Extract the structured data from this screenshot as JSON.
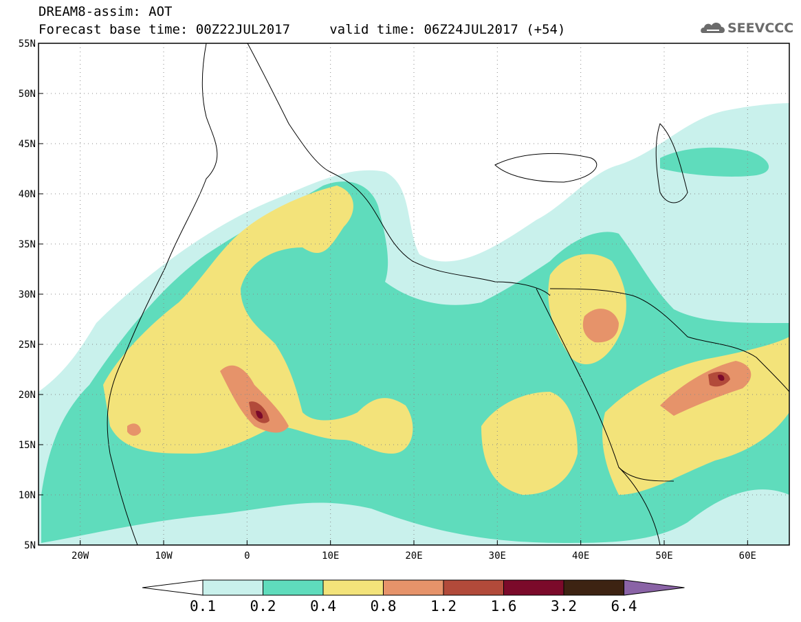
{
  "header": {
    "line1": "DREAM8-assim: AOT",
    "line2": "Forecast base time: 00Z22JUL2017     valid time: 06Z24JUL2017 (+54)",
    "logo_text": "SEEVCCC",
    "logo_icon": "cloud-icon"
  },
  "map": {
    "lon_range": [
      -25,
      65
    ],
    "lat_range": [
      5,
      55
    ],
    "lat_labels": [
      "55N",
      "50N",
      "45N",
      "40N",
      "35N",
      "30N",
      "25N",
      "20N",
      "15N",
      "10N",
      "5N"
    ],
    "lon_labels": [
      "20W",
      "10W",
      "0",
      "10E",
      "20E",
      "30E",
      "40E",
      "50E",
      "60E"
    ],
    "grid": "dotted"
  },
  "colorbar": {
    "levels": [
      "0.1",
      "0.2",
      "0.4",
      "0.8",
      "1.2",
      "1.6",
      "3.2",
      "6.4"
    ],
    "colors": [
      "#ffffff",
      "#c9f1ec",
      "#5fdcbc",
      "#f3e37a",
      "#e6936a",
      "#b24a3a",
      "#7b0a2a",
      "#3d2312",
      "#8a63a6"
    ]
  }
}
